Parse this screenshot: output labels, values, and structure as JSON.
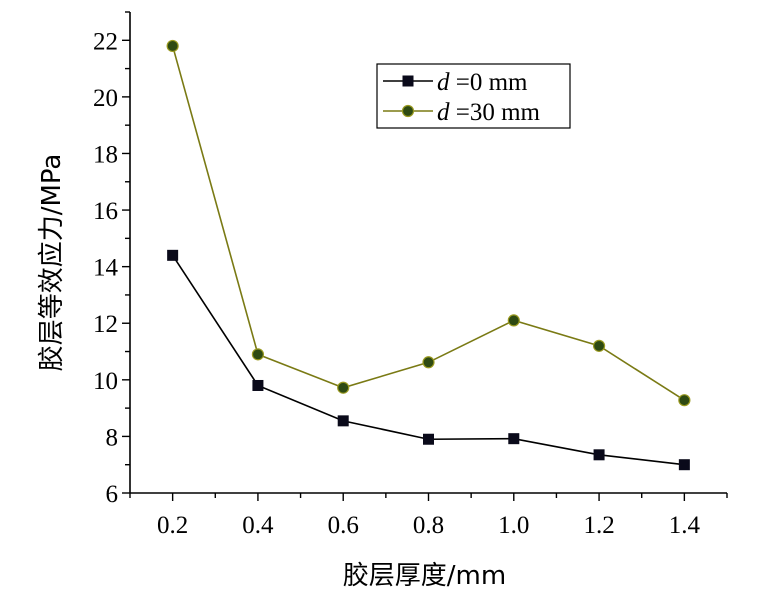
{
  "chart_data": {
    "type": "line",
    "title": "",
    "xlabel": "胶层厚度/mm",
    "ylabel": "胶层等效应力/MPa",
    "x": [
      0.2,
      0.4,
      0.6,
      0.8,
      1.0,
      1.2,
      1.4
    ],
    "x_tick_labels": [
      "0.2",
      "0.4",
      "0.6",
      "0.8",
      "1.0",
      "1.2",
      "1.4"
    ],
    "y_tick_labels": [
      "6",
      "8",
      "10",
      "12",
      "14",
      "16",
      "18",
      "20",
      "22"
    ],
    "xlim": [
      0.1,
      1.5
    ],
    "ylim": [
      6,
      23
    ],
    "grid": false,
    "legend_position": "top-right",
    "series": [
      {
        "name_prefix": "d",
        "name_suffix": "=0 mm",
        "marker": "square",
        "line_color": "#000000",
        "marker_color": "#0a0a1a",
        "values": [
          14.4,
          9.8,
          8.55,
          7.9,
          7.92,
          7.35,
          7.0
        ]
      },
      {
        "name_prefix": "d",
        "name_suffix": "=30 mm",
        "marker": "circle",
        "line_color": "#7a7a14",
        "marker_color": "#2e4a12",
        "values": [
          21.8,
          10.9,
          9.72,
          10.62,
          12.1,
          11.2,
          9.28
        ]
      }
    ]
  }
}
